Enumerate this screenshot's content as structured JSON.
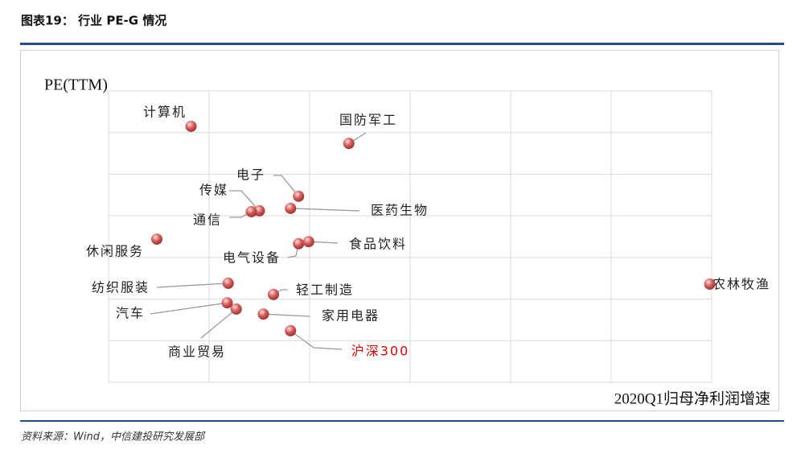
{
  "header": {
    "title": "图表19：  行业 PE-G 情况"
  },
  "chart_data": {
    "type": "scatter",
    "y_label": "PE(TTM)",
    "x_label": "2020Q1归母净利润增速",
    "xlim": [
      0,
      6
    ],
    "ylim": [
      0,
      7
    ],
    "xticks": [
      0,
      1,
      2,
      3,
      4,
      5,
      6
    ],
    "yticks": [
      0,
      1,
      2,
      3,
      4,
      5,
      6,
      7
    ],
    "grid": true,
    "marker_color": "#d9605f",
    "points": [
      {
        "name": "计算机",
        "x": 0.82,
        "y": 6.15
      },
      {
        "name": "国防军工",
        "x": 2.39,
        "y": 5.74
      },
      {
        "name": "电子",
        "x": 1.89,
        "y": 4.47
      },
      {
        "name": "传媒",
        "x": 1.5,
        "y": 4.12
      },
      {
        "name": "通信",
        "x": 1.42,
        "y": 4.1
      },
      {
        "name": "医药生物",
        "x": 1.81,
        "y": 4.18
      },
      {
        "name": "休闲服务",
        "x": 0.48,
        "y": 3.44
      },
      {
        "name": "电气设备",
        "x": 1.89,
        "y": 3.33
      },
      {
        "name": "食品饮料",
        "x": 1.99,
        "y": 3.38
      },
      {
        "name": "农林牧渔",
        "x": 5.98,
        "y": 2.36
      },
      {
        "name": "纺织服装",
        "x": 1.19,
        "y": 2.38
      },
      {
        "name": "轻工制造",
        "x": 1.64,
        "y": 2.11
      },
      {
        "name": "汽车",
        "x": 1.18,
        "y": 1.91
      },
      {
        "name": "商业贸易",
        "x": 1.27,
        "y": 1.76
      },
      {
        "name": "家用电器",
        "x": 1.54,
        "y": 1.64
      },
      {
        "name": "沪深300",
        "x": 1.81,
        "y": 1.24
      }
    ],
    "label_colors": [
      "#222",
      "#222",
      "#222",
      "#222",
      "#222",
      "#222",
      "#222",
      "#222",
      "#222",
      "#222",
      "#222",
      "#222",
      "#222",
      "#222",
      "#222",
      "#e00000"
    ]
  },
  "source": "资料来源：Wind，中信建投研究发展部"
}
